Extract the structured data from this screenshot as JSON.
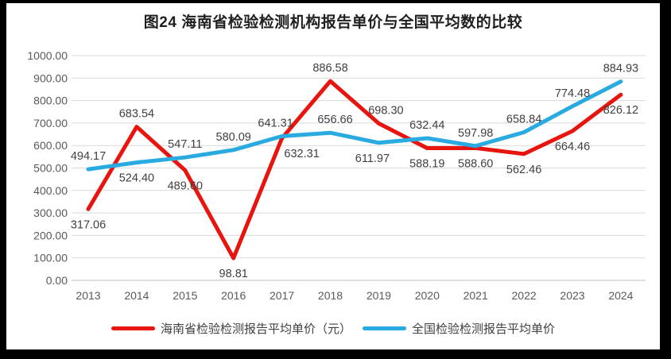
{
  "chart_data": {
    "type": "line",
    "title": "图24  海南省检验检测机构报告单价与全国平均数的比较",
    "categories": [
      "2013",
      "2014",
      "2015",
      "2016",
      "2017",
      "2018",
      "2019",
      "2020",
      "2021",
      "2022",
      "2023",
      "2024"
    ],
    "series": [
      {
        "name": "海南省检验检测报告平均单价（元）",
        "color": "#e8150f",
        "values": [
          317.06,
          683.54,
          489.6,
          98.81,
          632.31,
          886.58,
          698.3,
          588.19,
          588.6,
          562.46,
          664.46,
          826.12
        ],
        "label_side": [
          "below",
          "above",
          "below",
          "below",
          "below",
          "above",
          "above",
          "below",
          "below",
          "below",
          "below",
          "below"
        ],
        "label_dx": {
          "4": 25,
          "6": 9
        }
      },
      {
        "name": "全国检验检测报告平均单价",
        "color": "#29abe2",
        "values": [
          494.17,
          524.4,
          547.11,
          580.09,
          641.31,
          656.66,
          611.97,
          632.44,
          597.98,
          658.84,
          774.48,
          884.93
        ],
        "label_side": [
          "above",
          "below",
          "above",
          "above",
          "above",
          "above",
          "below",
          "above",
          "above",
          "above",
          "above",
          "above"
        ],
        "label_dx": {
          "4": -8,
          "6": -8,
          "5": 6
        }
      }
    ],
    "ylim": [
      0,
      1000
    ],
    "ytick_step": 100,
    "ytick_labels": [
      "0.00",
      "100.00",
      "200.00",
      "300.00",
      "400.00",
      "500.00",
      "600.00",
      "700.00",
      "800.00",
      "900.00",
      "1000.00"
    ],
    "grid": true,
    "legend_position": "bottom",
    "value_decimals": 2
  },
  "colors": {
    "page_border": "#000000",
    "panel": "#ffffff",
    "gridline": "#d9d9d9",
    "axis_line": "#bfbfbf",
    "axis_text": "#595959",
    "data_label": "#404040",
    "title_text": "#1f1f1f"
  }
}
